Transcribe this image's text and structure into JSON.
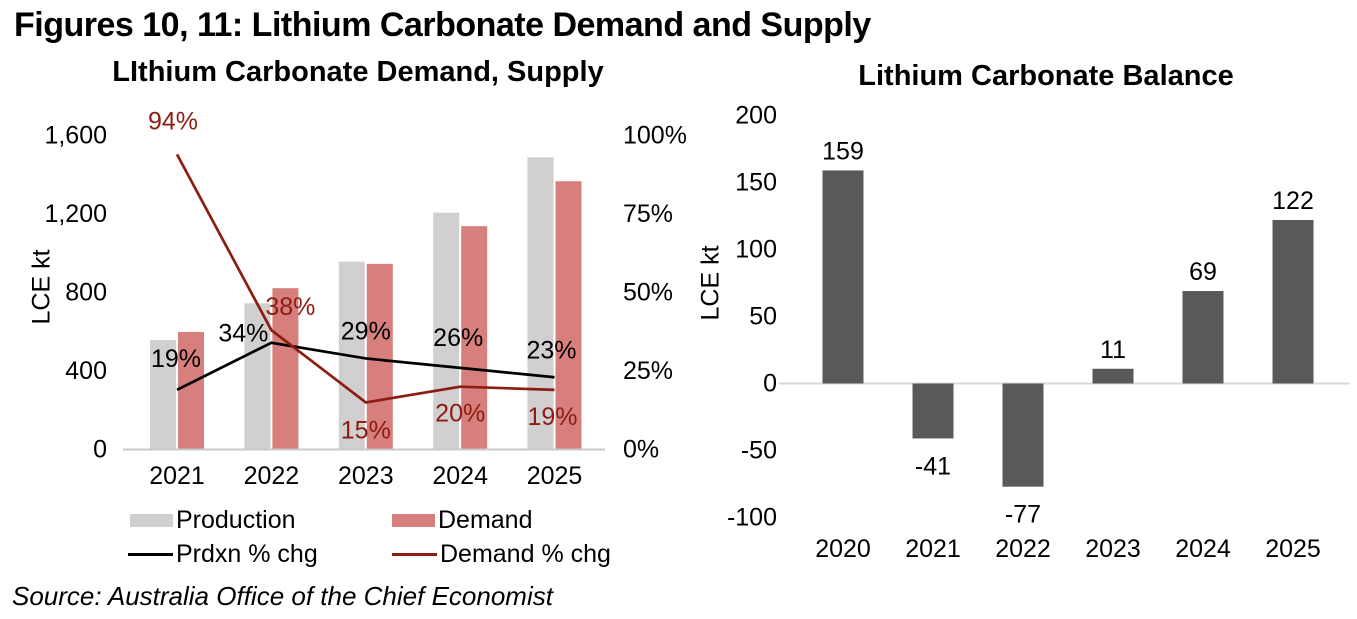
{
  "page": {
    "title": "Figures 10, 11: Lithium Carbonate Demand and Supply",
    "source": "Source: Australia Office of the Chief Economist"
  },
  "chart_data": [
    {
      "id": "lithium-carbonate-demand-supply",
      "type": "bar+line",
      "title": "LIthium Carbonate Demand, Supply",
      "ylabel": "LCE kt",
      "categories": [
        "2021",
        "2022",
        "2023",
        "2024",
        "2025"
      ],
      "left_axis": {
        "tick_labels": [
          "0",
          "400",
          "800",
          "1,200",
          "1,600"
        ],
        "tick_values": [
          0,
          400,
          800,
          1200,
          1600
        ],
        "range": [
          0,
          1600
        ]
      },
      "right_axis": {
        "tick_labels": [
          "0%",
          "25%",
          "50%",
          "75%",
          "100%"
        ],
        "tick_values": [
          0,
          25,
          50,
          75,
          100
        ],
        "range": [
          0,
          100
        ]
      },
      "series": [
        {
          "name": "Production",
          "type": "bar",
          "axis": "left",
          "color": "#d1cfcf",
          "values": [
            558,
            745,
            957,
            1207,
            1489
          ]
        },
        {
          "name": "Demand",
          "type": "bar",
          "axis": "left",
          "color": "#d77f7c",
          "values": [
            599,
            822,
            946,
            1138,
            1367
          ]
        },
        {
          "name": "Prdxn % chg",
          "type": "line",
          "axis": "right",
          "color": "#000000",
          "values": [
            19,
            34,
            29,
            26,
            23
          ],
          "point_labels": [
            "19%",
            "34%",
            "29%",
            "26%",
            "23%"
          ]
        },
        {
          "name": "Demand % chg",
          "type": "line",
          "axis": "right",
          "color": "#8b1d12",
          "values": [
            94,
            38,
            15,
            20,
            19
          ],
          "point_labels": [
            "94%",
            "38%",
            "15%",
            "20%",
            "19%"
          ]
        }
      ],
      "legend_position": "bottom",
      "grid": false
    },
    {
      "id": "lithium-carbonate-balance",
      "type": "bar",
      "title": "Lithium Carbonate Balance",
      "ylabel": "LCE kt",
      "categories": [
        "2020",
        "2021",
        "2022",
        "2023",
        "2024",
        "2025"
      ],
      "values": [
        159,
        -41,
        -77,
        11,
        69,
        122
      ],
      "bar_labels": [
        "159",
        "-41",
        "-77",
        "11",
        "69",
        "122"
      ],
      "bar_color": "#595959",
      "zero_line_color": "#d9d9d9",
      "y_axis": {
        "tick_labels": [
          "200",
          "150",
          "100",
          "50",
          "0",
          "-50",
          "-100"
        ],
        "tick_values": [
          200,
          150,
          100,
          50,
          0,
          -50,
          -100
        ],
        "range": [
          -100,
          200
        ]
      },
      "grid": false
    }
  ]
}
